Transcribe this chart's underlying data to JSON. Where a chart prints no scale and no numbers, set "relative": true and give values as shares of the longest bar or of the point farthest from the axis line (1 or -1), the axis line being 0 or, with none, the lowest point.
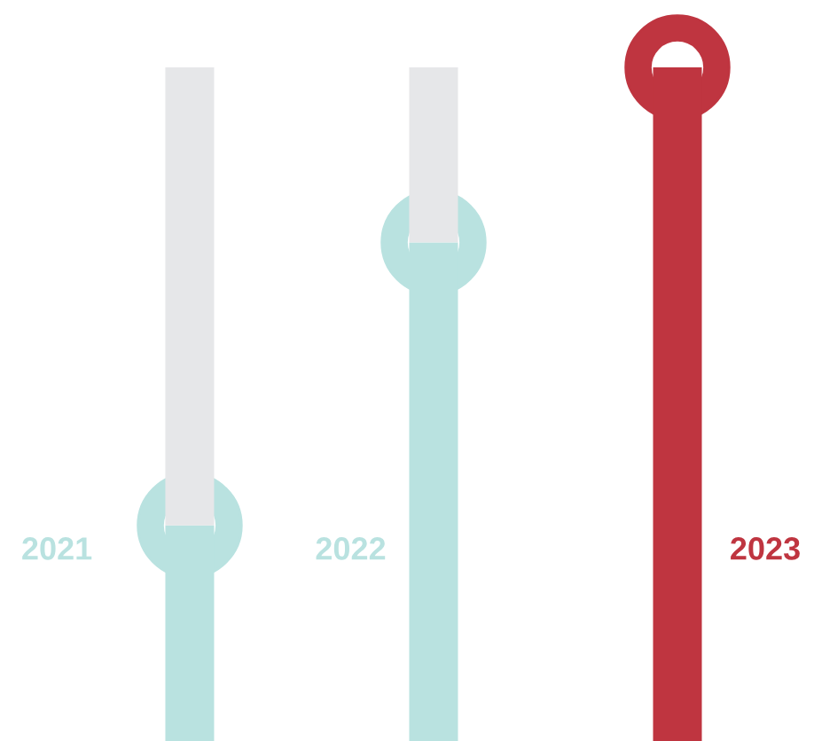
{
  "chart_data": {
    "type": "bar",
    "relative": true,
    "stacked": true,
    "categories": [
      "2021",
      "2022",
      "2023"
    ],
    "series": [
      {
        "colors": [
          "#b9e2e0",
          "#b9e2e0",
          "#bf3540"
        ],
        "values": [
          0.32,
          0.74,
          1.0
        ]
      },
      {
        "color": "#e6e7e9",
        "values": [
          0.68,
          0.26,
          0.0
        ]
      }
    ]
  }
}
